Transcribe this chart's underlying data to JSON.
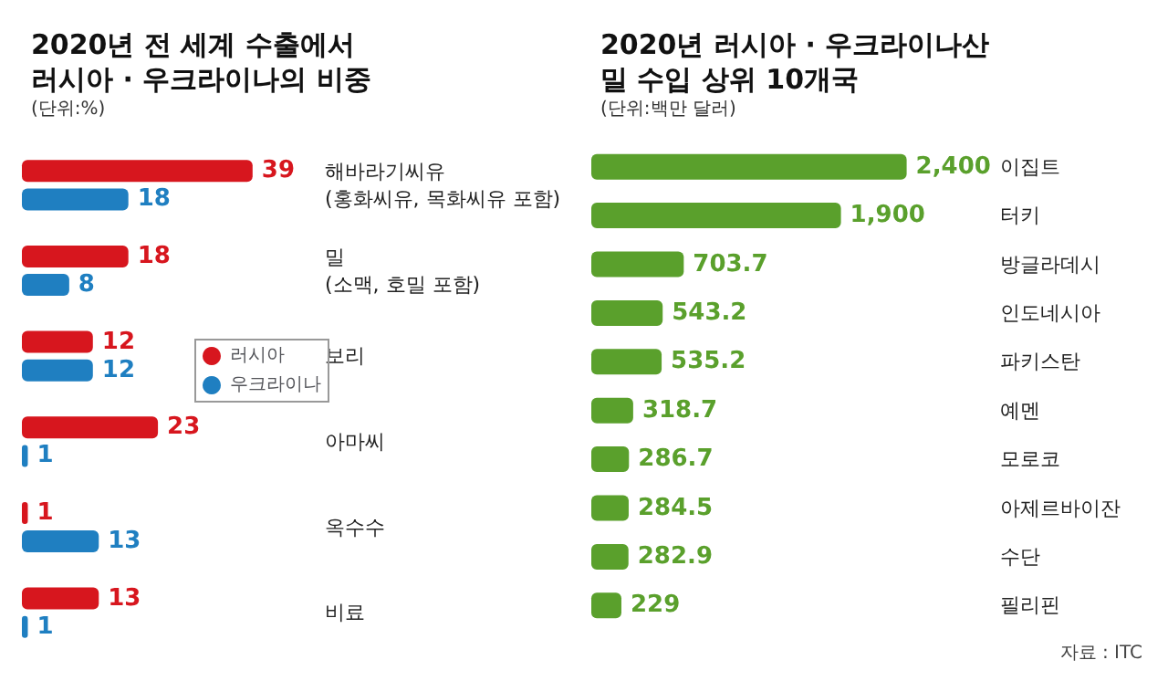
{
  "chart_data": [
    {
      "type": "bar",
      "orientation": "horizontal",
      "title": "2020년 전 세계 수출에서\n러시아 · 우크라이나의 비중",
      "subtitle": "(단위:%)",
      "categories": [
        "해바라기씨유\n(홍화씨유, 목화씨유 포함)",
        "밀\n(소맥, 호밀 포함)",
        "보리",
        "아마씨",
        "옥수수",
        "비료"
      ],
      "series": [
        {
          "name": "러시아",
          "color": "#d7161e",
          "values": [
            39,
            18,
            12,
            23,
            1,
            13
          ]
        },
        {
          "name": "우크라이나",
          "color": "#1f7fc1",
          "values": [
            18,
            8,
            12,
            1,
            13,
            1
          ]
        }
      ],
      "data_labels": true,
      "legend": "right",
      "tick_labels": "y"
    },
    {
      "type": "bar",
      "orientation": "horizontal",
      "title": "2020년 러시아 · 우크라이나산\n밀 수입 상위 10개국",
      "subtitle": "(단위:백만 달러)",
      "categories": [
        "이집트",
        "터키",
        "방글라데시",
        "인도네시아",
        "파키스탄",
        "예멘",
        "모로코",
        "아제르바이잔",
        "수단",
        "필리핀"
      ],
      "values": [
        2400,
        1900,
        703.7,
        543.2,
        535.2,
        318.7,
        286.7,
        284.5,
        282.9,
        229
      ],
      "color": "#5aa02c",
      "value_labels": [
        "2,400",
        "1,900",
        "703.7",
        "543.2",
        "535.2",
        "318.7",
        "286.7",
        "284.5",
        "282.9",
        "229"
      ],
      "tick_labels": "y",
      "annotations": [
        "자료 : ITC"
      ]
    }
  ]
}
